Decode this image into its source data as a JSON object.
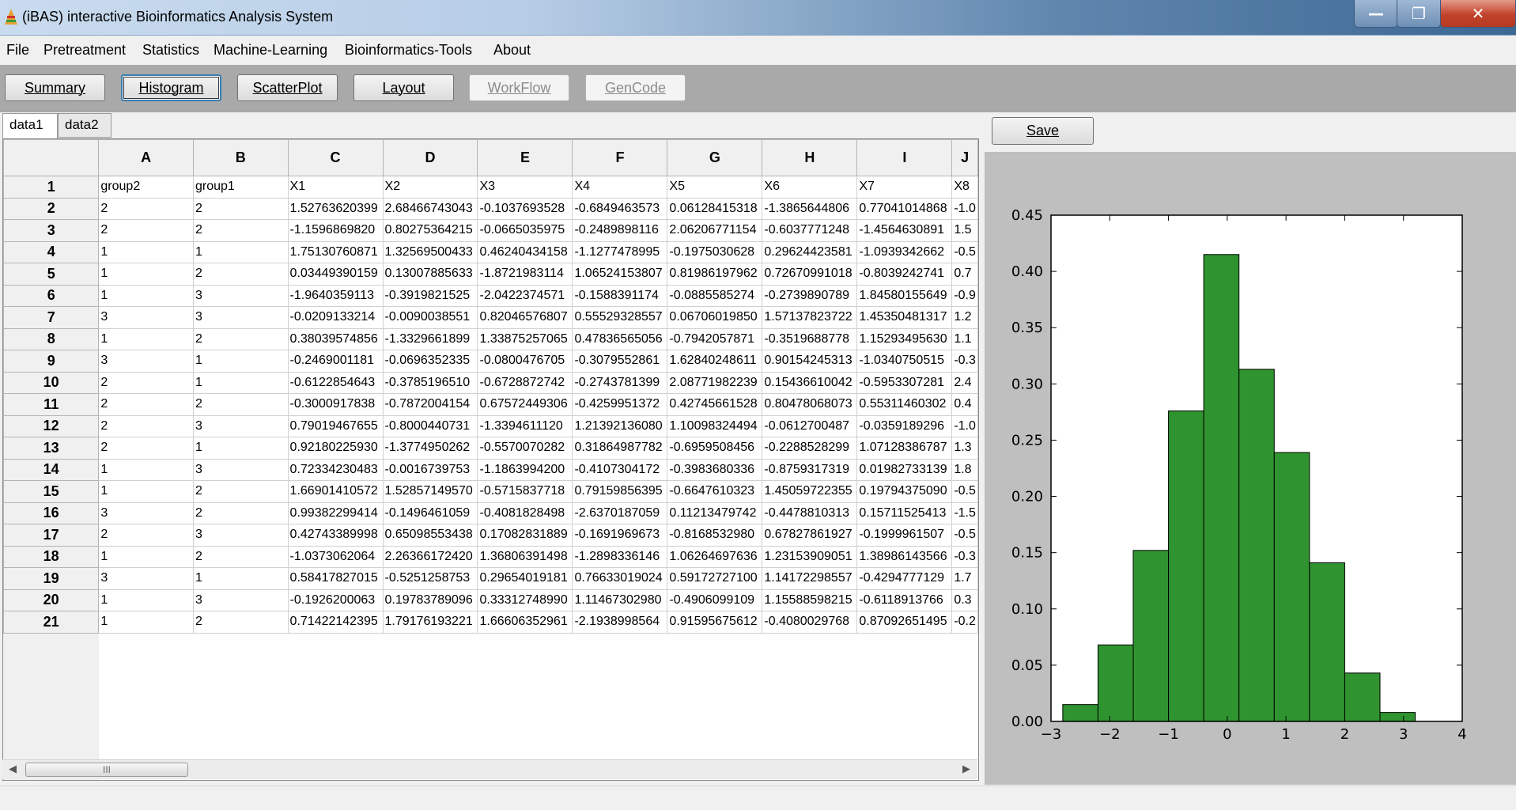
{
  "window": {
    "title": "(iBAS) interactive Bioinformatics Analysis System",
    "minimize": "—",
    "maximize": "❐",
    "close": "✕"
  },
  "menu": [
    "File",
    "Pretreatment",
    "Statistics",
    "Machine-Learning",
    "Bioinformatics-Tools",
    "About"
  ],
  "toolbar": {
    "buttons": [
      {
        "label": "Summary",
        "state": "normal"
      },
      {
        "label": "Histogram",
        "state": "active"
      },
      {
        "label": "ScatterPlot",
        "state": "normal"
      },
      {
        "label": "Layout",
        "state": "normal"
      },
      {
        "label": "WorkFlow",
        "state": "disabled"
      },
      {
        "label": "GenCode",
        "state": "disabled"
      }
    ]
  },
  "tabs": [
    {
      "label": "data1",
      "selected": true
    },
    {
      "label": "data2",
      "selected": false
    }
  ],
  "grid": {
    "columns": [
      "A",
      "B",
      "C",
      "D",
      "E",
      "F",
      "G",
      "H",
      "I",
      "J"
    ],
    "rows": [
      {
        "n": "1",
        "cells": [
          "group2",
          "group1",
          "X1",
          "X2",
          "X3",
          "X4",
          "X5",
          "X6",
          "X7",
          "X8"
        ]
      },
      {
        "n": "2",
        "cells": [
          "2",
          "2",
          "1.52763620399",
          "2.68466743043",
          "-0.1037693528",
          "-0.6849463573",
          "0.06128415318",
          "-1.3865644806",
          "0.77041014868",
          "-1.0"
        ]
      },
      {
        "n": "3",
        "cells": [
          "2",
          "2",
          "-1.1596869820",
          "0.80275364215",
          "-0.0665035975",
          "-0.2489898116",
          "2.06206771154",
          "-0.6037771248",
          "-1.4564630891",
          "1.5"
        ]
      },
      {
        "n": "4",
        "cells": [
          "1",
          "1",
          "1.75130760871",
          "1.32569500433",
          "0.46240434158",
          "-1.1277478995",
          "-0.1975030628",
          "0.29624423581",
          "-1.0939342662",
          "-0.5"
        ]
      },
      {
        "n": "5",
        "cells": [
          "1",
          "2",
          "0.03449390159",
          "0.13007885633",
          "-1.8721983114",
          "1.06524153807",
          "0.81986197962",
          "0.72670991018",
          "-0.8039242741",
          "0.7"
        ]
      },
      {
        "n": "6",
        "cells": [
          "1",
          "3",
          "-1.9640359113",
          "-0.3919821525",
          "-2.0422374571",
          "-0.1588391174",
          "-0.0885585274",
          "-0.2739890789",
          "1.84580155649",
          "-0.9"
        ]
      },
      {
        "n": "7",
        "cells": [
          "3",
          "3",
          "-0.0209133214",
          "-0.0090038551",
          "0.82046576807",
          "0.55529328557",
          "0.06706019850",
          "1.57137823722",
          "1.45350481317",
          "1.2"
        ]
      },
      {
        "n": "8",
        "cells": [
          "1",
          "2",
          "0.38039574856",
          "-1.3329661899",
          "1.33875257065",
          "0.47836565056",
          "-0.7942057871",
          "-0.3519688778",
          "1.15293495630",
          "1.1"
        ]
      },
      {
        "n": "9",
        "cells": [
          "3",
          "1",
          "-0.2469001181",
          "-0.0696352335",
          "-0.0800476705",
          "-0.3079552861",
          "1.62840248611",
          "0.90154245313",
          "-1.0340750515",
          "-0.3"
        ]
      },
      {
        "n": "10",
        "cells": [
          "2",
          "1",
          "-0.6122854643",
          "-0.3785196510",
          "-0.6728872742",
          "-0.2743781399",
          "2.08771982239",
          "0.15436610042",
          "-0.5953307281",
          "2.4"
        ]
      },
      {
        "n": "11",
        "cells": [
          "2",
          "2",
          "-0.3000917838",
          "-0.7872004154",
          "0.67572449306",
          "-0.4259951372",
          "0.42745661528",
          "0.80478068073",
          "0.55311460302",
          "0.4"
        ]
      },
      {
        "n": "12",
        "cells": [
          "2",
          "3",
          "0.79019467655",
          "-0.8000440731",
          "-1.3394611120",
          "1.21392136080",
          "1.10098324494",
          "-0.0612700487",
          "-0.0359189296",
          "-1.0"
        ]
      },
      {
        "n": "13",
        "cells": [
          "2",
          "1",
          "0.92180225930",
          "-1.3774950262",
          "-0.5570070282",
          "0.31864987782",
          "-0.6959508456",
          "-0.2288528299",
          "1.07128386787",
          "1.3"
        ]
      },
      {
        "n": "14",
        "cells": [
          "1",
          "3",
          "0.72334230483",
          "-0.0016739753",
          "-1.1863994200",
          "-0.4107304172",
          "-0.3983680336",
          "-0.8759317319",
          "0.01982733139",
          "1.8"
        ]
      },
      {
        "n": "15",
        "cells": [
          "1",
          "2",
          "1.66901410572",
          "1.52857149570",
          "-0.5715837718",
          "0.79159856395",
          "-0.6647610323",
          "1.45059722355",
          "0.19794375090",
          "-0.5"
        ]
      },
      {
        "n": "16",
        "cells": [
          "3",
          "2",
          "0.99382299414",
          "-0.1496461059",
          "-0.4081828498",
          "-2.6370187059",
          "0.11213479742",
          "-0.4478810313",
          "0.15711525413",
          "-1.5"
        ]
      },
      {
        "n": "17",
        "cells": [
          "2",
          "3",
          "0.42743389998",
          "0.65098553438",
          "0.17082831889",
          "-0.1691969673",
          "-0.8168532980",
          "0.67827861927",
          "-0.1999961507",
          "-0.5"
        ]
      },
      {
        "n": "18",
        "cells": [
          "1",
          "2",
          "-1.0373062064",
          "2.26366172420",
          "1.36806391498",
          "-1.2898336146",
          "1.06264697636",
          "1.23153909051",
          "1.38986143566",
          "-0.3"
        ]
      },
      {
        "n": "19",
        "cells": [
          "3",
          "1",
          "0.58417827015",
          "-0.5251258753",
          "0.29654019181",
          "0.76633019024",
          "0.59172727100",
          "1.14172298557",
          "-0.4294777129",
          "1.7"
        ]
      },
      {
        "n": "20",
        "cells": [
          "1",
          "3",
          "-0.1926200063",
          "0.19783789096",
          "0.33312748990",
          "1.11467302980",
          "-0.4906099109",
          "1.15588598215",
          "-0.6118913766",
          "0.3"
        ]
      },
      {
        "n": "21",
        "cells": [
          "1",
          "2",
          "0.71422142395",
          "1.79176193221",
          "1.66606352961",
          "-2.1938998564",
          "0.91595675612",
          "-0.4080029768",
          "0.87092651495",
          "-0.2"
        ]
      }
    ]
  },
  "scrollbar": {
    "left_arrow": "◀",
    "right_arrow": "▶",
    "thumb_grip": "III"
  },
  "save_label": "Save",
  "chart_data": {
    "type": "bar",
    "title": "",
    "xlabel": "",
    "ylabel": "",
    "bins": [
      {
        "from": -2.8,
        "to": -2.2,
        "value": 0.015
      },
      {
        "from": -2.2,
        "to": -1.6,
        "value": 0.068
      },
      {
        "from": -1.6,
        "to": -1.0,
        "value": 0.152
      },
      {
        "from": -1.0,
        "to": -0.4,
        "value": 0.276
      },
      {
        "from": -0.4,
        "to": 0.2,
        "value": 0.415
      },
      {
        "from": 0.2,
        "to": 0.8,
        "value": 0.313
      },
      {
        "from": 0.8,
        "to": 1.4,
        "value": 0.239
      },
      {
        "from": 1.4,
        "to": 2.0,
        "value": 0.141
      },
      {
        "from": 2.0,
        "to": 2.6,
        "value": 0.043
      },
      {
        "from": 2.6,
        "to": 3.2,
        "value": 0.008
      }
    ],
    "xlim": [
      -3,
      4
    ],
    "ylim": [
      0,
      0.45
    ],
    "xticks": [
      "−3",
      "−2",
      "−1",
      "0",
      "1",
      "2",
      "3",
      "4"
    ],
    "yticks": [
      "0.00",
      "0.05",
      "0.10",
      "0.15",
      "0.20",
      "0.25",
      "0.30",
      "0.35",
      "0.40",
      "0.45"
    ],
    "bar_color": "#2f942f",
    "grid": false
  }
}
